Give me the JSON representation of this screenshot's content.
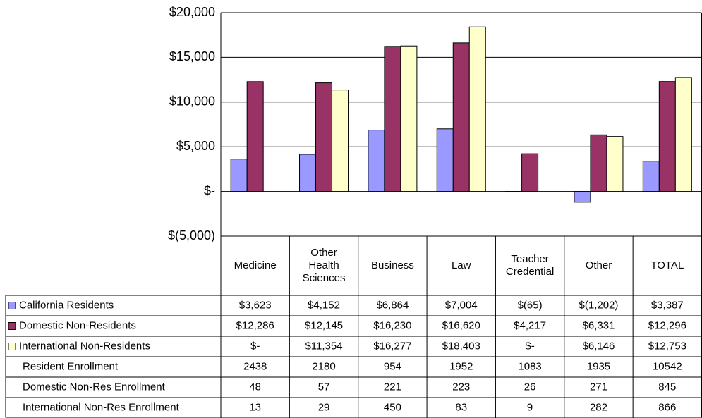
{
  "chart_data": {
    "type": "bar",
    "categories": [
      "Medicine",
      "Other Health Sciences",
      "Business",
      "Law",
      "Teacher Credential",
      "Other",
      "TOTAL"
    ],
    "series": [
      {
        "name": "California Residents",
        "color": "#9999ff",
        "values": [
          3623,
          4152,
          6864,
          7004,
          -65,
          -1202,
          3387
        ],
        "value_labels": [
          "$3,623",
          "$4,152",
          "$6,864",
          "$7,004",
          "$(65)",
          "$(1,202)",
          "$3,387"
        ]
      },
      {
        "name": "Domestic Non-Residents",
        "color": "#993366",
        "values": [
          12286,
          12145,
          16230,
          16620,
          4217,
          6331,
          12296
        ],
        "value_labels": [
          "$12,286",
          "$12,145",
          "$16,230",
          "$16,620",
          "$4,217",
          "$6,331",
          "$12,296"
        ]
      },
      {
        "name": "International Non-Residents",
        "color": "#ffffcc",
        "values": [
          0,
          11354,
          16277,
          18403,
          0,
          6146,
          12753
        ],
        "value_labels": [
          "$-",
          "$11,354",
          "$16,277",
          "$18,403",
          "$-",
          "$6,146",
          "$12,753"
        ]
      }
    ],
    "table_rows": [
      {
        "name": "Resident Enrollment",
        "values": [
          2438,
          2180,
          954,
          1952,
          1083,
          1935,
          10542
        ]
      },
      {
        "name": "Domestic Non-Res Enrollment",
        "values": [
          48,
          57,
          221,
          223,
          26,
          271,
          845
        ]
      },
      {
        "name": "International Non-Res Enrollment",
        "values": [
          13,
          29,
          450,
          83,
          9,
          282,
          866
        ]
      }
    ],
    "ylim": [
      -5000,
      20000
    ],
    "yticks": [
      {
        "value": -5000,
        "label": "$(5,000)"
      },
      {
        "value": 0,
        "label": "$-"
      },
      {
        "value": 5000,
        "label": "$5,000"
      },
      {
        "value": 10000,
        "label": "$10,000"
      },
      {
        "value": 15000,
        "label": "$15,000"
      },
      {
        "value": 20000,
        "label": "$20,000"
      }
    ],
    "grid": true
  }
}
